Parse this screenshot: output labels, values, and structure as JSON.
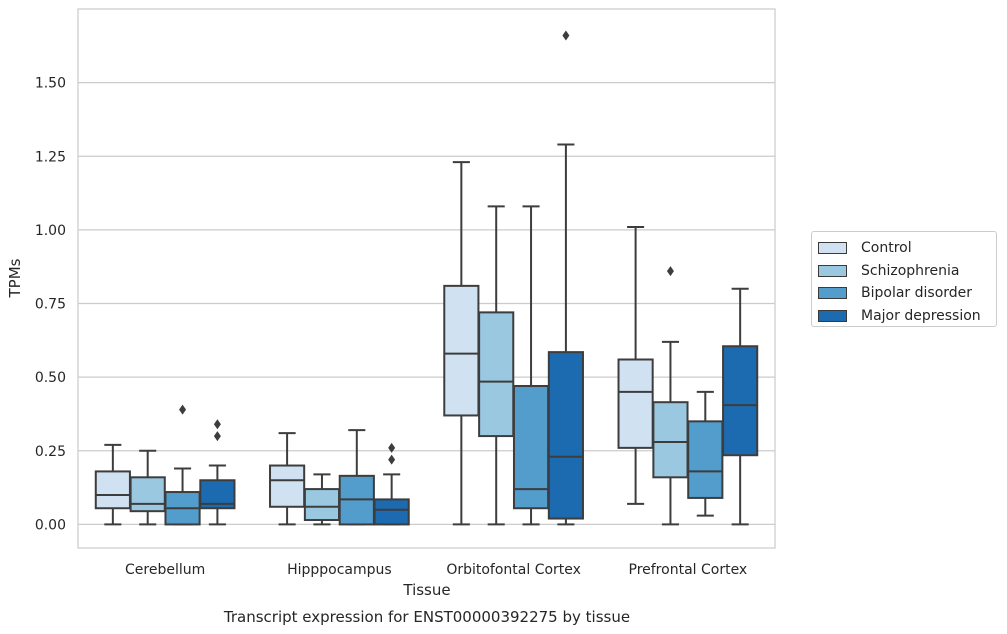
{
  "chart_data": {
    "type": "box",
    "title": "",
    "caption": "Transcript expression for ENST00000392275 by tissue",
    "xlabel": "Tissue",
    "ylabel": "TPMs",
    "categories": [
      "Cerebellum",
      "Hipppocampus",
      "Orbitofontal Cortex",
      "Prefrontal Cortex"
    ],
    "yticks": [
      "0.00",
      "0.25",
      "0.50",
      "0.75",
      "1.00",
      "1.25",
      "1.50"
    ],
    "ylim": [
      -0.08,
      1.75
    ],
    "grid": "horizontal",
    "legend_position": "right",
    "series": [
      {
        "name": "Control",
        "color": "#d0e1f2",
        "boxes": [
          {
            "whislo": 0.0,
            "q1": 0.055,
            "med": 0.1,
            "q3": 0.18,
            "whishi": 0.27,
            "fliers": []
          },
          {
            "whislo": 0.0,
            "q1": 0.06,
            "med": 0.15,
            "q3": 0.2,
            "whishi": 0.31,
            "fliers": []
          },
          {
            "whislo": 0.0,
            "q1": 0.37,
            "med": 0.58,
            "q3": 0.81,
            "whishi": 1.23,
            "fliers": []
          },
          {
            "whislo": 0.07,
            "q1": 0.26,
            "med": 0.45,
            "q3": 0.56,
            "whishi": 1.01,
            "fliers": []
          }
        ]
      },
      {
        "name": "Schizophrenia",
        "color": "#9ac8e0",
        "boxes": [
          {
            "whislo": 0.0,
            "q1": 0.045,
            "med": 0.07,
            "q3": 0.16,
            "whishi": 0.25,
            "fliers": []
          },
          {
            "whislo": 0.0,
            "q1": 0.015,
            "med": 0.06,
            "q3": 0.12,
            "whishi": 0.17,
            "fliers": []
          },
          {
            "whislo": 0.0,
            "q1": 0.3,
            "med": 0.485,
            "q3": 0.72,
            "whishi": 1.08,
            "fliers": []
          },
          {
            "whislo": 0.0,
            "q1": 0.16,
            "med": 0.28,
            "q3": 0.415,
            "whishi": 0.62,
            "fliers": [
              0.86
            ]
          }
        ]
      },
      {
        "name": "Bipolar disorder",
        "color": "#529dcc",
        "boxes": [
          {
            "whislo": 0.0,
            "q1": 0.0,
            "med": 0.055,
            "q3": 0.11,
            "whishi": 0.19,
            "fliers": [
              0.39
            ]
          },
          {
            "whislo": 0.0,
            "q1": 0.0,
            "med": 0.085,
            "q3": 0.165,
            "whishi": 0.32,
            "fliers": []
          },
          {
            "whislo": 0.0,
            "q1": 0.055,
            "med": 0.12,
            "q3": 0.47,
            "whishi": 1.08,
            "fliers": []
          },
          {
            "whislo": 0.03,
            "q1": 0.09,
            "med": 0.18,
            "q3": 0.35,
            "whishi": 0.45,
            "fliers": []
          }
        ]
      },
      {
        "name": "Major depression",
        "color": "#1c6aaf",
        "boxes": [
          {
            "whislo": 0.0,
            "q1": 0.055,
            "med": 0.07,
            "q3": 0.15,
            "whishi": 0.2,
            "fliers": [
              0.34,
              0.3
            ]
          },
          {
            "whislo": 0.0,
            "q1": 0.0,
            "med": 0.05,
            "q3": 0.085,
            "whishi": 0.17,
            "fliers": [
              0.26,
              0.22
            ]
          },
          {
            "whislo": 0.0,
            "q1": 0.02,
            "med": 0.23,
            "q3": 0.585,
            "whishi": 1.29,
            "fliers": [
              1.66
            ]
          },
          {
            "whislo": 0.0,
            "q1": 0.235,
            "med": 0.405,
            "q3": 0.605,
            "whishi": 0.8,
            "fliers": []
          }
        ]
      }
    ]
  }
}
